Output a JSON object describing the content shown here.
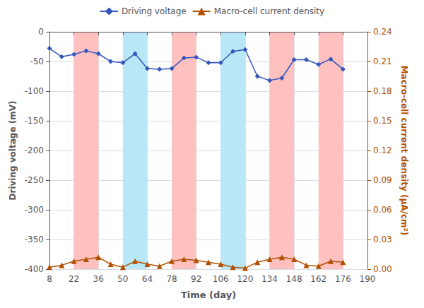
{
  "chart_data": {
    "type": "line",
    "xlabel": "Time (day)",
    "ylabel": "Driving voltage (mV)",
    "y2label": "Macro-cell current density (μA/cm²)",
    "x": [
      8,
      15,
      22,
      29,
      36,
      43,
      50,
      57,
      64,
      71,
      78,
      85,
      92,
      99,
      106,
      113,
      120,
      127,
      134,
      141,
      148,
      155,
      162,
      169,
      176
    ],
    "xlim": [
      8,
      190
    ],
    "xticks": [
      8,
      22,
      36,
      50,
      64,
      78,
      92,
      106,
      120,
      134,
      148,
      162,
      176,
      190
    ],
    "ylim": [
      -400,
      0
    ],
    "yticks": [
      0,
      -50,
      -100,
      -150,
      -200,
      -250,
      -300,
      -350,
      -400
    ],
    "y2lim": [
      0,
      0.24
    ],
    "y2ticks": [
      {
        "value": 0,
        "label": "0.00"
      },
      0.03,
      0.06,
      0.09,
      0.12,
      0.15,
      0.18,
      0.21,
      0.24
    ],
    "grid": true,
    "legend": "top",
    "series": [
      {
        "name": "Driving voltage",
        "color": "#3355bb",
        "marker": "diamond",
        "values": [
          -28,
          -42,
          -38,
          -32,
          -37,
          -50,
          -52,
          -37,
          -62,
          -63,
          -62,
          -44,
          -43,
          -52,
          -52,
          -33,
          -30,
          -75,
          -82,
          -78,
          -47,
          -47,
          -55,
          -46,
          -63
        ]
      },
      {
        "name": "Macro-cell current density",
        "color": "#b05000",
        "marker": "triangle",
        "axis": "y2",
        "values": [
          0.002,
          0.004,
          0.008,
          0.01,
          0.012,
          0.005,
          0.002,
          0.008,
          0.005,
          0.003,
          0.008,
          0.01,
          0.009,
          0.007,
          0.005,
          0.002,
          0.001,
          0.007,
          0.01,
          0.012,
          0.01,
          0.004,
          0.003,
          0.008,
          0.007
        ]
      }
    ],
    "bands": [
      {
        "color": "#ffc0c0",
        "ranges": [
          [
            22,
            36
          ],
          [
            78,
            92
          ],
          [
            134,
            148
          ],
          [
            162,
            176
          ]
        ]
      },
      {
        "color": "#b8e8f8",
        "ranges": [
          [
            50,
            64
          ],
          [
            106,
            120
          ]
        ]
      }
    ]
  }
}
